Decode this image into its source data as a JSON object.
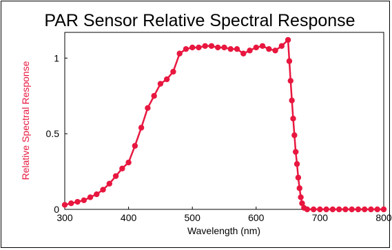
{
  "chart_data": {
    "type": "line",
    "title": "PAR Sensor Relative Spectral Response",
    "xlabel": "Wavelength  (nm)",
    "ylabel": "Relative Spectral Response",
    "xlim": [
      300,
      800
    ],
    "ylim": [
      0,
      1.17
    ],
    "x_ticks": [
      300,
      400,
      500,
      600,
      700,
      800
    ],
    "x_tick_labels": [
      "300",
      "400",
      "500",
      "600",
      "700",
      "800"
    ],
    "y_ticks": [
      0,
      0.5,
      1
    ],
    "y_tick_labels": [
      "0",
      "0.5",
      "1"
    ],
    "grid": false,
    "legend": "none",
    "series": [
      {
        "color": "#e8173f",
        "marker": "circle",
        "x": [
          300,
          310,
          320,
          330,
          340,
          350,
          360,
          370,
          380,
          390,
          400,
          410,
          420,
          430,
          440,
          450,
          460,
          470,
          480,
          490,
          500,
          510,
          520,
          530,
          540,
          550,
          560,
          570,
          580,
          590,
          600,
          610,
          620,
          630,
          640,
          650,
          652,
          654,
          656,
          658,
          660,
          662,
          664,
          666,
          668,
          670,
          672,
          675,
          680,
          690,
          700,
          710,
          720,
          730,
          740,
          750,
          760,
          770,
          780,
          790,
          800
        ],
        "y": [
          0.03,
          0.04,
          0.05,
          0.06,
          0.08,
          0.1,
          0.13,
          0.17,
          0.22,
          0.27,
          0.31,
          0.42,
          0.54,
          0.67,
          0.75,
          0.83,
          0.86,
          0.91,
          1.03,
          1.06,
          1.07,
          1.07,
          1.08,
          1.08,
          1.07,
          1.07,
          1.06,
          1.06,
          1.03,
          1.05,
          1.07,
          1.08,
          1.06,
          1.05,
          1.08,
          1.12,
          0.98,
          0.85,
          0.72,
          0.6,
          0.49,
          0.38,
          0.3,
          0.21,
          0.14,
          0.08,
          0.04,
          0.01,
          0.0,
          0.0,
          0.0,
          0.0,
          0.0,
          0.0,
          0.0,
          0.0,
          0.0,
          0.0,
          0.0,
          0.0,
          0.0
        ]
      }
    ]
  },
  "colors": {
    "series": "#e8173f",
    "ylabel": "#e8173f",
    "axis": "#000000",
    "background": "#ffffff"
  }
}
